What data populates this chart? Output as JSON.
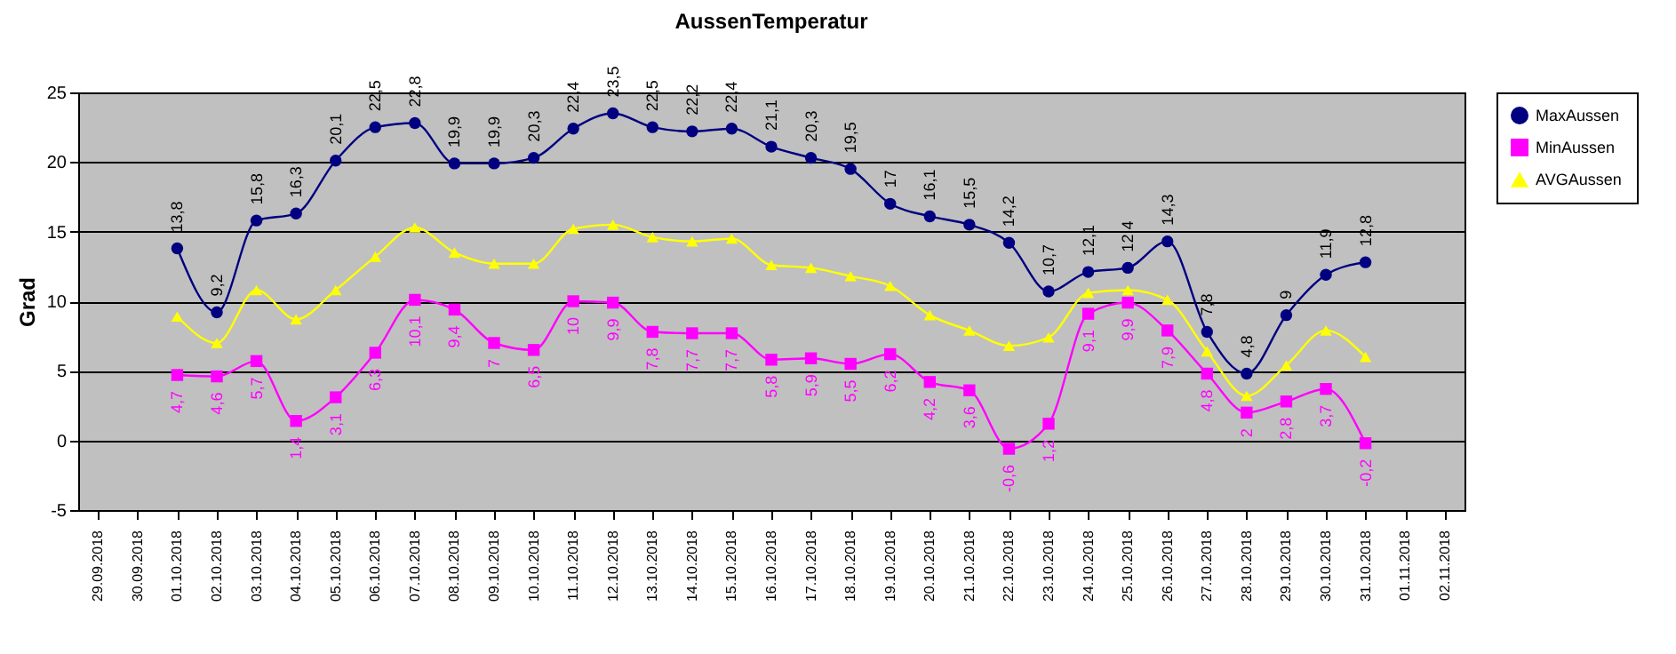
{
  "chart_data": {
    "type": "line",
    "title": "AussenTemperatur",
    "ylabel": "Grad",
    "categories": [
      "29.09.2018",
      "30.09.2018",
      "01.10.2018",
      "02.10.2018",
      "03.10.2018",
      "04.10.2018",
      "05.10.2018",
      "06.10.2018",
      "07.10.2018",
      "08.10.2018",
      "09.10.2018",
      "10.10.2018",
      "11.10.2018",
      "12.10.2018",
      "13.10.2018",
      "14.10.2018",
      "15.10.2018",
      "16.10.2018",
      "17.10.2018",
      "18.10.2018",
      "19.10.2018",
      "20.10.2018",
      "21.10.2018",
      "22.10.2018",
      "23.10.2018",
      "24.10.2018",
      "25.10.2018",
      "26.10.2018",
      "27.10.2018",
      "28.10.2018",
      "29.10.2018",
      "30.10.2018",
      "31.10.2018",
      "01.11.2018",
      "02.11.2018"
    ],
    "series": [
      {
        "name": "MaxAussen",
        "color": "#000080",
        "marker": "circle",
        "values": [
          null,
          null,
          13.8,
          9.2,
          15.8,
          16.3,
          20.1,
          22.5,
          22.8,
          19.9,
          19.9,
          20.3,
          22.4,
          23.5,
          22.5,
          22.2,
          22.4,
          21.1,
          20.3,
          19.5,
          17,
          16.1,
          15.5,
          14.2,
          10.7,
          12.1,
          12.4,
          14.3,
          7.8,
          4.8,
          9,
          11.9,
          12.8,
          null,
          null
        ],
        "value_labels": [
          null,
          null,
          "13,8",
          "9,2",
          "15,8",
          "16,3",
          "20,1",
          "22,5",
          "22,8",
          "19,9",
          "19,9",
          "20,3",
          "22,4",
          "23,5",
          "22,5",
          "22,2",
          "22,4",
          "21,1",
          "20,3",
          "19,5",
          "17",
          "16,1",
          "15,5",
          "14,2",
          "10,7",
          "12,1",
          "12,4",
          "14,3",
          "7,8",
          "4,8",
          "9",
          "11,9",
          "12,8",
          null,
          null
        ]
      },
      {
        "name": "MinAussen",
        "color": "#ff00ff",
        "marker": "square",
        "values": [
          null,
          null,
          4.7,
          4.6,
          5.7,
          1.4,
          3.1,
          6.3,
          10.1,
          9.4,
          7,
          6.5,
          10,
          9.9,
          7.8,
          7.7,
          7.7,
          5.8,
          5.9,
          5.5,
          6.2,
          4.2,
          3.6,
          -0.6,
          1.2,
          9.1,
          9.9,
          7.9,
          4.8,
          2,
          2.8,
          3.7,
          -0.2,
          null,
          null
        ],
        "value_labels": [
          null,
          null,
          "4,7",
          "4,6",
          "5,7",
          "1,4",
          "3,1",
          "6,3",
          "10,1",
          "9,4",
          "7",
          "6,5",
          "10",
          "9,9",
          "7,8",
          "7,7",
          "7,7",
          "5,8",
          "5,9",
          "5,5",
          "6,2",
          "4,2",
          "3,6",
          "-0,6",
          "1,2",
          "9,1",
          "9,9",
          "7,9",
          "4,8",
          "2",
          "2,8",
          "3,7",
          "-0,2",
          null,
          null
        ]
      },
      {
        "name": "AVGAussen",
        "color": "#ffff00",
        "marker": "triangle",
        "values": [
          null,
          null,
          8.9,
          7.0,
          10.8,
          8.7,
          10.8,
          13.2,
          15.3,
          13.5,
          12.7,
          12.7,
          15.2,
          15.5,
          14.6,
          14.3,
          14.5,
          12.6,
          12.4,
          11.8,
          11.1,
          9.0,
          7.9,
          6.8,
          7.4,
          10.6,
          10.8,
          10.1,
          6.4,
          3.2,
          5.4,
          7.9,
          6.0,
          null,
          null
        ]
      }
    ],
    "ylim": [
      -5,
      25
    ],
    "yticks": [
      -5,
      0,
      5,
      10,
      15,
      20,
      25
    ],
    "grid": "y",
    "legend": "right",
    "line_style": "solid"
  }
}
